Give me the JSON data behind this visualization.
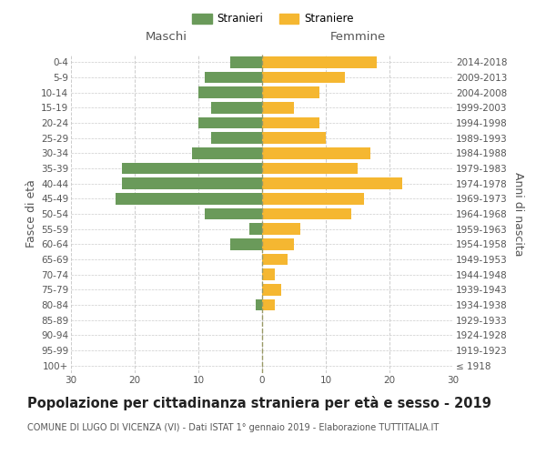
{
  "age_groups": [
    "100+",
    "95-99",
    "90-94",
    "85-89",
    "80-84",
    "75-79",
    "70-74",
    "65-69",
    "60-64",
    "55-59",
    "50-54",
    "45-49",
    "40-44",
    "35-39",
    "30-34",
    "25-29",
    "20-24",
    "15-19",
    "10-14",
    "5-9",
    "0-4"
  ],
  "birth_years": [
    "≤ 1918",
    "1919-1923",
    "1924-1928",
    "1929-1933",
    "1934-1938",
    "1939-1943",
    "1944-1948",
    "1949-1953",
    "1954-1958",
    "1959-1963",
    "1964-1968",
    "1969-1973",
    "1974-1978",
    "1979-1983",
    "1984-1988",
    "1989-1993",
    "1994-1998",
    "1999-2003",
    "2004-2008",
    "2009-2013",
    "2014-2018"
  ],
  "males": [
    0,
    0,
    0,
    0,
    1,
    0,
    0,
    0,
    5,
    2,
    9,
    23,
    22,
    22,
    11,
    8,
    10,
    8,
    10,
    9,
    5
  ],
  "females": [
    0,
    0,
    0,
    0,
    2,
    3,
    2,
    4,
    5,
    6,
    14,
    16,
    22,
    15,
    17,
    10,
    9,
    5,
    9,
    13,
    18
  ],
  "male_color": "#6a9a5a",
  "female_color": "#f5b731",
  "background_color": "#ffffff",
  "grid_color": "#cccccc",
  "title": "Popolazione per cittadinanza straniera per età e sesso - 2019",
  "subtitle": "COMUNE DI LUGO DI VICENZA (VI) - Dati ISTAT 1° gennaio 2019 - Elaborazione TUTTITALIA.IT",
  "left_label": "Maschi",
  "right_label": "Femmine",
  "ylabel_left": "Fasce di età",
  "ylabel_right": "Anni di nascita",
  "legend_males": "Stranieri",
  "legend_females": "Straniere",
  "xlim": 30,
  "title_fontsize": 10.5,
  "subtitle_fontsize": 7.0,
  "axis_fontsize": 9,
  "tick_fontsize": 7.5
}
